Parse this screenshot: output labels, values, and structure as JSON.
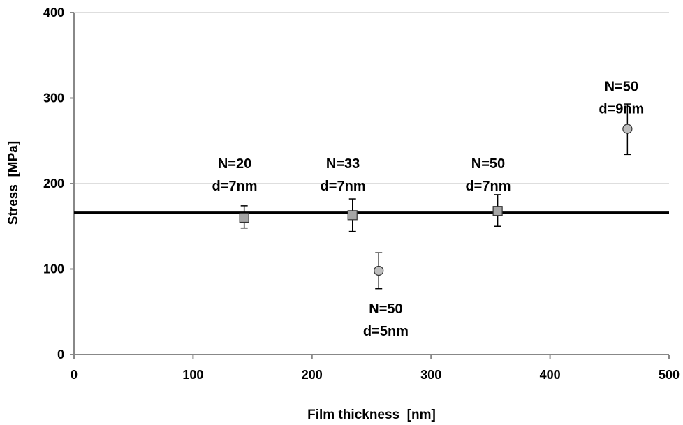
{
  "chart_data": {
    "type": "scatter",
    "title": "",
    "xlabel": "Film thickness  [nm]",
    "ylabel": "Stress  [MPa]",
    "xlim": [
      0,
      500
    ],
    "ylim": [
      0,
      400
    ],
    "xticks": [
      "0",
      "100",
      "200",
      "300",
      "400",
      "500"
    ],
    "yticks": [
      "0",
      "100",
      "200",
      "300",
      "400"
    ],
    "grid": "horizontal",
    "legend": "none",
    "reference_line": {
      "y": 166
    },
    "series": [
      {
        "marker": "square",
        "color": "#a6a6a6",
        "points": [
          {
            "x": 143,
            "y": 160,
            "err_low": 148,
            "err_high": 174
          },
          {
            "x": 234,
            "y": 163,
            "err_low": 144,
            "err_high": 182
          },
          {
            "x": 356,
            "y": 168,
            "err_low": 150,
            "err_high": 187
          }
        ]
      },
      {
        "marker": "circle",
        "color": "#bdbdbd",
        "points": [
          {
            "x": 256,
            "y": 98,
            "err_low": 77,
            "err_high": 119
          },
          {
            "x": 465,
            "y": 264,
            "err_low": 234,
            "err_high": 293
          }
        ]
      }
    ],
    "annotations": [
      {
        "line1": "N=20",
        "line2": "d=7nm",
        "x": 135,
        "y": 218
      },
      {
        "line1": "N=33",
        "line2": "d=7nm",
        "x": 226,
        "y": 218
      },
      {
        "line1": "N=50",
        "line2": "d=7nm",
        "x": 348,
        "y": 218
      },
      {
        "line1": "N=50",
        "line2": "d=5nm",
        "x": 262,
        "y": 48
      },
      {
        "line1": "N=50",
        "line2": "d=9nm",
        "x": 460,
        "y": 308
      }
    ]
  }
}
